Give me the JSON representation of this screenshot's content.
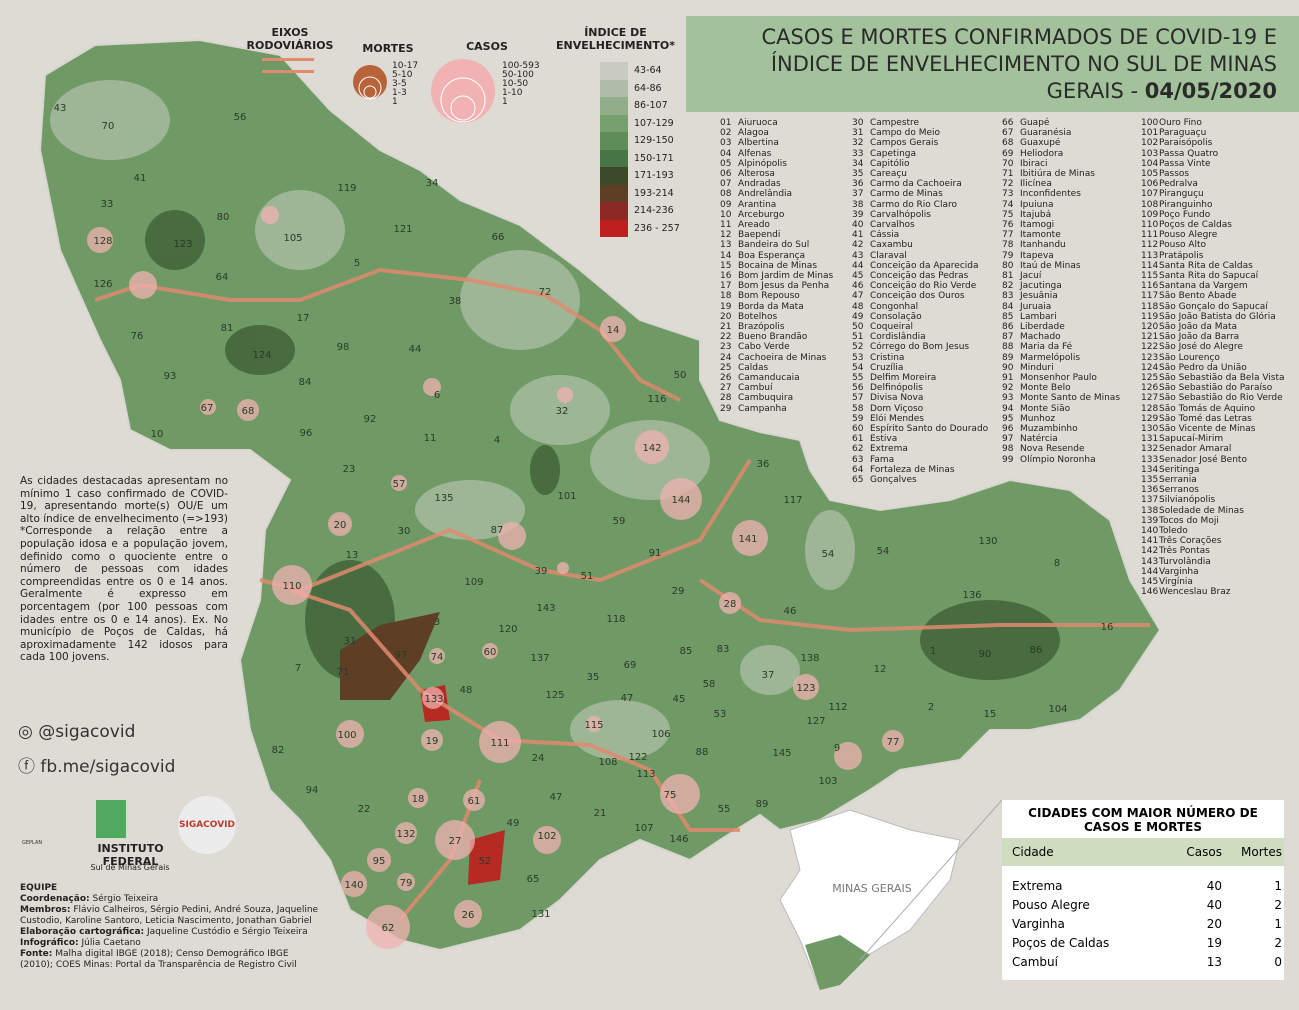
{
  "header": {
    "title": "CASOS E MORTES CONFIRMADOS DE COVID-19  E ÍNDICE DE ENVELHECIMENTO NO SUL DE MINAS GERAIS - ",
    "date": "04/05/2020"
  },
  "legend": {
    "roads": "EIXOS RODOVIÁRIOS",
    "deaths": {
      "title": "MORTES",
      "labels": [
        "10-17",
        "5-10",
        "3-5",
        "1-3",
        "1"
      ]
    },
    "cases": {
      "title": "CASOS",
      "labels": [
        "100-593",
        "50-100",
        "10-50",
        "1-10",
        "1"
      ]
    },
    "aging": {
      "title": "ÍNDICE DE ENVELHECIMENTO*",
      "labels": [
        "43-64",
        "64-86",
        "86-107",
        "107-129",
        "129-150",
        "150-171",
        "171-193",
        "193-214",
        "214-236",
        "236 - 257"
      ],
      "colors": [
        "#c9cbc3",
        "#aebca8",
        "#92ad8a",
        "#77a06f",
        "#5f8d57",
        "#487545",
        "#3b4a2a",
        "#5e3f26",
        "#8a2a22",
        "#c01f1f"
      ]
    }
  },
  "cities": [
    [
      "01",
      "Aiuruoca"
    ],
    [
      "02",
      "Alagoa"
    ],
    [
      "03",
      "Albertina"
    ],
    [
      "04",
      "Alfenas"
    ],
    [
      "05",
      "Alpinópolis"
    ],
    [
      "06",
      "Alterosa"
    ],
    [
      "07",
      "Andradas"
    ],
    [
      "08",
      "Andrelândia"
    ],
    [
      "09",
      "Arantina"
    ],
    [
      "10",
      "Arceburgo"
    ],
    [
      "11",
      "Areado"
    ],
    [
      "12",
      "Baependi"
    ],
    [
      "13",
      "Bandeira do Sul"
    ],
    [
      "14",
      "Boa Esperança"
    ],
    [
      "15",
      "Bocaina de Minas"
    ],
    [
      "16",
      "Bom Jardim de Minas"
    ],
    [
      "17",
      "Bom Jesus da Penha"
    ],
    [
      "18",
      "Bom Repouso"
    ],
    [
      "19",
      "Borda da Mata"
    ],
    [
      "20",
      "Botelhos"
    ],
    [
      "21",
      "Brazópolis"
    ],
    [
      "22",
      "Bueno Brandão"
    ],
    [
      "23",
      "Cabo Verde"
    ],
    [
      "24",
      "Cachoeira de Minas"
    ],
    [
      "25",
      "Caldas"
    ],
    [
      "26",
      "Camanducaia"
    ],
    [
      "27",
      "Cambuí"
    ],
    [
      "28",
      "Cambuquira"
    ],
    [
      "29",
      "Campanha"
    ],
    [
      "30",
      "Campestre"
    ],
    [
      "31",
      "Campo do Meio"
    ],
    [
      "32",
      "Campos Gerais"
    ],
    [
      "33",
      "Capetinga"
    ],
    [
      "34",
      "Capitólio"
    ],
    [
      "35",
      "Careaçu"
    ],
    [
      "36",
      "Carmo da Cachoeira"
    ],
    [
      "37",
      "Carmo de Minas"
    ],
    [
      "38",
      "Carmo do Rio Claro"
    ],
    [
      "39",
      "Carvalhópolis"
    ],
    [
      "40",
      "Carvalhos"
    ],
    [
      "41",
      "Cássia"
    ],
    [
      "42",
      "Caxambu"
    ],
    [
      "43",
      "Claraval"
    ],
    [
      "44",
      "Conceição da Aparecida"
    ],
    [
      "45",
      "Conceição das Pedras"
    ],
    [
      "46",
      "Conceição do Rio Verde"
    ],
    [
      "47",
      "Conceição dos Ouros"
    ],
    [
      "48",
      "Congonhal"
    ],
    [
      "49",
      "Consolação"
    ],
    [
      "50",
      "Coqueiral"
    ],
    [
      "51",
      "Cordislândia"
    ],
    [
      "52",
      "Córrego do Bom Jesus"
    ],
    [
      "53",
      "Cristina"
    ],
    [
      "54",
      "Cruzília"
    ],
    [
      "55",
      "Delfim Moreira"
    ],
    [
      "56",
      "Delfinópolis"
    ],
    [
      "57",
      "Divisa Nova"
    ],
    [
      "58",
      "Dom Viçoso"
    ],
    [
      "59",
      "Elói Mendes"
    ],
    [
      "60",
      "Espírito Santo do Dourado"
    ],
    [
      "61",
      "Estiva"
    ],
    [
      "62",
      "Extrema"
    ],
    [
      "63",
      "Fama"
    ],
    [
      "64",
      "Fortaleza de Minas"
    ],
    [
      "65",
      "Gonçalves"
    ],
    [
      "66",
      "Guapé"
    ],
    [
      "67",
      "Guaranésia"
    ],
    [
      "68",
      "Guaxupé"
    ],
    [
      "69",
      "Heliodora"
    ],
    [
      "70",
      "Ibiraci"
    ],
    [
      "71",
      "Ibitiúra de Minas"
    ],
    [
      "72",
      "Ilicínea"
    ],
    [
      "73",
      "Inconfidentes"
    ],
    [
      "74",
      "Ipuiuna"
    ],
    [
      "75",
      "Itajubá"
    ],
    [
      "76",
      "Itamogi"
    ],
    [
      "77",
      "Itamonte"
    ],
    [
      "78",
      "Itanhandu"
    ],
    [
      "79",
      "Itapeva"
    ],
    [
      "80",
      "Itaú de Minas"
    ],
    [
      "81",
      "Jacuí"
    ],
    [
      "82",
      "Jacutinga"
    ],
    [
      "83",
      "Jesuânia"
    ],
    [
      "84",
      "Juruaia"
    ],
    [
      "85",
      "Lambari"
    ],
    [
      "86",
      "Liberdade"
    ],
    [
      "87",
      "Machado"
    ],
    [
      "88",
      "Maria da Fé"
    ],
    [
      "89",
      "Marmelópolis"
    ],
    [
      "90",
      "Minduri"
    ],
    [
      "91",
      "Monsenhor Paulo"
    ],
    [
      "92",
      "Monte Belo"
    ],
    [
      "93",
      "Monte Santo de Minas"
    ],
    [
      "94",
      "Monte Sião"
    ],
    [
      "95",
      "Munhoz"
    ],
    [
      "96",
      "Muzambinho"
    ],
    [
      "97",
      "Natércia"
    ],
    [
      "98",
      "Nova Resende"
    ],
    [
      "99",
      "Olímpio Noronha"
    ],
    [
      "100",
      "Ouro Fino"
    ],
    [
      "101",
      "Paraguaçu"
    ],
    [
      "102",
      "Paraisópolis"
    ],
    [
      "103",
      "Passa Quatro"
    ],
    [
      "104",
      "Passa Vinte"
    ],
    [
      "105",
      "Passos"
    ],
    [
      "106",
      "Pedralva"
    ],
    [
      "107",
      "Piranguçu"
    ],
    [
      "108",
      "Piranguinho"
    ],
    [
      "109",
      "Poço Fundo"
    ],
    [
      "110",
      "Poços de Caldas"
    ],
    [
      "111",
      "Pouso Alegre"
    ],
    [
      "112",
      "Pouso Alto"
    ],
    [
      "113",
      "Pratápolis"
    ],
    [
      "114",
      "Santa Rita de Caldas"
    ],
    [
      "115",
      "Santa Rita do Sapucaí"
    ],
    [
      "116",
      "Santana da Vargem"
    ],
    [
      "117",
      "São Bento Abade"
    ],
    [
      "118",
      "São Gonçalo do Sapucaí"
    ],
    [
      "119",
      "São João Batista do Glória"
    ],
    [
      "120",
      "São João da Mata"
    ],
    [
      "121",
      "São João da Barra"
    ],
    [
      "122",
      "São José do Alegre"
    ],
    [
      "123",
      "São Lourenço"
    ],
    [
      "124",
      "São Pedro da União"
    ],
    [
      "125",
      "São Sebastião da Bela Vista"
    ],
    [
      "126",
      "São Sebastião do Paraíso"
    ],
    [
      "127",
      "São Sebastião do Rio Verde"
    ],
    [
      "128",
      "São Tomás de Aquino"
    ],
    [
      "129",
      "São Tomé das Letras"
    ],
    [
      "130",
      "São Vicente de Minas"
    ],
    [
      "131",
      "Sapucaí-Mirim"
    ],
    [
      "132",
      "Senador Amaral"
    ],
    [
      "133",
      "Senador José Bento"
    ],
    [
      "134",
      "Seritinga"
    ],
    [
      "135",
      "Serrania"
    ],
    [
      "136",
      "Serranos"
    ],
    [
      "137",
      "Silvianópolis"
    ],
    [
      "138",
      "Soledade de Minas"
    ],
    [
      "139",
      "Tocos do Moji"
    ],
    [
      "140",
      "Toledo"
    ],
    [
      "141",
      "Três Corações"
    ],
    [
      "142",
      "Três Pontas"
    ],
    [
      "143",
      "Turvolândia"
    ],
    [
      "144",
      "Varginha"
    ],
    [
      "145",
      "Virgínia"
    ],
    [
      "146",
      "Wenceslau Braz"
    ]
  ],
  "map_labels": [
    43,
    70,
    56,
    41,
    33,
    119,
    34,
    80,
    128,
    123,
    105,
    121,
    66,
    126,
    64,
    5,
    38,
    72,
    17,
    81,
    76,
    124,
    98,
    44,
    14,
    93,
    84,
    6,
    50,
    116,
    67,
    68,
    92,
    32,
    10,
    96,
    11,
    4,
    142,
    36,
    57,
    23,
    135,
    101,
    144,
    117,
    20,
    30,
    87,
    59,
    141,
    54,
    54,
    130,
    8,
    13,
    109,
    39,
    51,
    91,
    29,
    28,
    46,
    136,
    110,
    143,
    118,
    120,
    3,
    97,
    74,
    60,
    137,
    85,
    83,
    138,
    12,
    1,
    31,
    7,
    71,
    48,
    69,
    35,
    37,
    123,
    47,
    45,
    16,
    86,
    90,
    133,
    125,
    112,
    2,
    15,
    104,
    58,
    53,
    127,
    19,
    115,
    106,
    100,
    82,
    111,
    122,
    88,
    145,
    9,
    77,
    108,
    24,
    94,
    103,
    113,
    18,
    75,
    47,
    61,
    89,
    55,
    22,
    132,
    27,
    102,
    107,
    21,
    49,
    146,
    52,
    95,
    79,
    65,
    140,
    131,
    26,
    62
  ],
  "note": {
    "p1": "As cidades destacadas apresentam no mínimo 1 caso confirmado de COVID-19, apresentando morte(s) OU/E um alto índice de envelhecimento (=>193)",
    "p2": "*Corresponde a relação entre a população idosa e a população jovem, definido como o quociente entre o número de pessoas com idades compreendidas entre os 0 e 14 anos. Geralmente é expresso em porcentagem (por 100 pessoas com idades entre os 0 e 14 anos). Ex. No município de Poços de Caldas, há aproximadamente 142 idosos para cada 100 jovens."
  },
  "social": {
    "instagram": "@sigacovid",
    "facebook": "fb.me/sigacovid"
  },
  "logos": {
    "geplan": "GEPLAN",
    "institute": "INSTITUTO FEDERAL",
    "campus": "Sul de Minas Gerais",
    "siga": "SIGACOVID"
  },
  "team": {
    "title": "EQUIPE",
    "rows": [
      [
        "Coordenação:",
        "Sérgio Teixeira"
      ],
      [
        "Membros:",
        "Flávio Calheiros, Sérgio Pedini, André Souza, Jaqueline Custodio, Karoline Santoro, Leticia Nascimento, Jonathan Gabriel"
      ],
      [
        "Elaboração cartográfica:",
        "Jaqueline Custódio e Sérgio Teixeira"
      ],
      [
        "Infográfico:",
        "Júlia Caetano"
      ],
      [
        "Fonte:",
        "Malha digital IBGE (2018); Censo Demográfico IBGE (2010); COES Minas: Portal da Transparência de Registro Civil"
      ]
    ]
  },
  "inset": {
    "label": "MINAS GERAIS"
  },
  "table": {
    "title": "CIDADES COM MAIOR NÚMERO DE CASOS E MORTES",
    "columns": [
      "Cidade",
      "Casos",
      "Mortes"
    ],
    "rows": [
      [
        "Extrema",
        "40",
        "1"
      ],
      [
        "Pouso Alegre",
        "40",
        "2"
      ],
      [
        "Varginha",
        "20",
        "1"
      ],
      [
        "Poços de Caldas",
        "19",
        "2"
      ],
      [
        "Cambuí",
        "13",
        "0"
      ]
    ]
  }
}
